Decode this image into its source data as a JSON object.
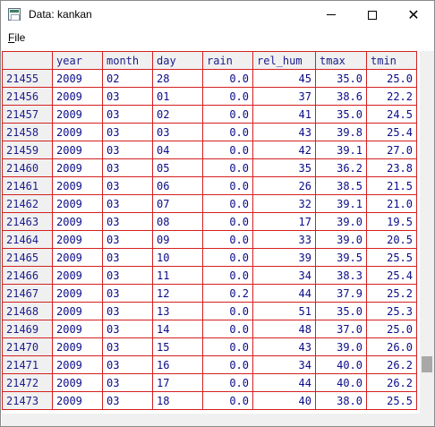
{
  "window": {
    "title": "Data: kankan"
  },
  "controls": {
    "minimize": "minimize",
    "maximize": "maximize",
    "close": "✕"
  },
  "menu": {
    "file_label": "File",
    "file_accel": "F",
    "file_rest": "ile"
  },
  "columns": [
    "year",
    "month",
    "day",
    "rain",
    "rel_hum",
    "tmax",
    "tmin"
  ],
  "rows": [
    [
      "21455",
      "2009",
      "02",
      "28",
      "0.0",
      "45",
      "35.0",
      "25.0"
    ],
    [
      "21456",
      "2009",
      "03",
      "01",
      "0.0",
      "37",
      "38.6",
      "22.2"
    ],
    [
      "21457",
      "2009",
      "03",
      "02",
      "0.0",
      "41",
      "35.0",
      "24.5"
    ],
    [
      "21458",
      "2009",
      "03",
      "03",
      "0.0",
      "43",
      "39.8",
      "25.4"
    ],
    [
      "21459",
      "2009",
      "03",
      "04",
      "0.0",
      "42",
      "39.1",
      "27.0"
    ],
    [
      "21460",
      "2009",
      "03",
      "05",
      "0.0",
      "35",
      "36.2",
      "23.8"
    ],
    [
      "21461",
      "2009",
      "03",
      "06",
      "0.0",
      "26",
      "38.5",
      "21.5"
    ],
    [
      "21462",
      "2009",
      "03",
      "07",
      "0.0",
      "32",
      "39.1",
      "21.0"
    ],
    [
      "21463",
      "2009",
      "03",
      "08",
      "0.0",
      "17",
      "39.0",
      "19.5"
    ],
    [
      "21464",
      "2009",
      "03",
      "09",
      "0.0",
      "33",
      "39.0",
      "20.5"
    ],
    [
      "21465",
      "2009",
      "03",
      "10",
      "0.0",
      "39",
      "39.5",
      "25.5"
    ],
    [
      "21466",
      "2009",
      "03",
      "11",
      "0.0",
      "34",
      "38.3",
      "25.4"
    ],
    [
      "21467",
      "2009",
      "03",
      "12",
      "0.2",
      "44",
      "37.9",
      "25.2"
    ],
    [
      "21468",
      "2009",
      "03",
      "13",
      "0.0",
      "51",
      "35.0",
      "25.3"
    ],
    [
      "21469",
      "2009",
      "03",
      "14",
      "0.0",
      "48",
      "37.0",
      "25.0"
    ],
    [
      "21470",
      "2009",
      "03",
      "15",
      "0.0",
      "43",
      "39.0",
      "26.0"
    ],
    [
      "21471",
      "2009",
      "03",
      "16",
      "0.0",
      "34",
      "40.0",
      "26.2"
    ],
    [
      "21472",
      "2009",
      "03",
      "17",
      "0.0",
      "44",
      "40.0",
      "26.2"
    ],
    [
      "21473",
      "2009",
      "03",
      "18",
      "0.0",
      "40",
      "38.0",
      "25.5"
    ]
  ],
  "colors": {
    "grid_line": "#d42020",
    "text": "#0b0b8a",
    "header_bg": "#f0f0f0"
  },
  "icons": {
    "app": "data-window-icon"
  }
}
